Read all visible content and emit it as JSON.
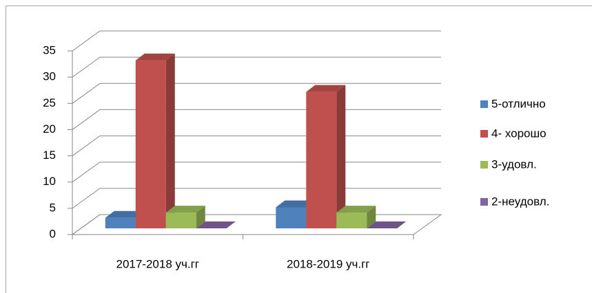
{
  "chart_data": {
    "type": "bar3d",
    "categories": [
      "2017-2018 уч.гг",
      "2018-2019 уч.гг"
    ],
    "series": [
      {
        "name": "5-отлично",
        "color": "#4f81bd",
        "values": [
          2,
          4
        ]
      },
      {
        "name": "4- хорошо",
        "color": "#c0504d",
        "values": [
          32,
          26
        ]
      },
      {
        "name": "3-удовл.",
        "color": "#9bbb59",
        "values": [
          3,
          3
        ]
      },
      {
        "name": "2-неудовл.",
        "color": "#8064a2",
        "values": [
          0,
          0
        ]
      }
    ],
    "ylim": [
      0,
      35
    ],
    "yticks": [
      0,
      5,
      10,
      15,
      20,
      25,
      30,
      35
    ],
    "grid": true,
    "legend": "right"
  }
}
